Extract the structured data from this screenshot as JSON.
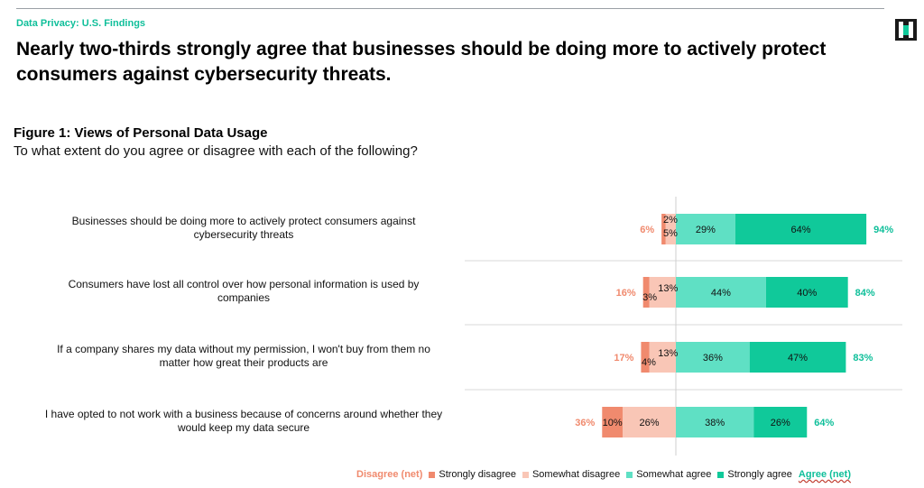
{
  "header": {
    "kicker": "Data Privacy: U.S. Findings",
    "title": "Nearly two-thirds strongly agree that businesses should be doing more to actively protect consumers against cybersecurity threats."
  },
  "figure": {
    "title": "Figure 1: Views of Personal Data Usage",
    "subtitle": "To what extent do you agree or disagree with each of the following?"
  },
  "colors": {
    "teal_text": "#0fbf9a",
    "salmon_text": "#f08a6e",
    "strongly_disagree": "#f08a6e",
    "somewhat_disagree": "#f9c6b6",
    "somewhat_agree": "#5fe0c4",
    "strongly_agree": "#10c99a",
    "logo_dark": "#1a1a1a",
    "logo_accent": "#10c99a"
  },
  "legend": {
    "disagree_net": "Disagree (net)",
    "strongly_disagree": "Strongly disagree",
    "somewhat_disagree": "Somewhat disagree",
    "somewhat_agree": "Somewhat agree",
    "strongly_agree": "Strongly agree",
    "agree_net": "Agree (net)"
  },
  "chart_data": {
    "type": "bar",
    "orientation": "horizontal-diverging",
    "categories": [
      [
        "Businesses should be doing more to actively protect consumers against",
        "cybersecurity threats"
      ],
      [
        "Consumers have lost all control over how personal information is used by",
        "companies"
      ],
      [
        "If a company shares my data without my permission, I won't buy from them no",
        "matter how great their products are"
      ],
      [
        "I have opted to not work with a business because of concerns around whether they",
        "would keep my data secure"
      ]
    ],
    "series": [
      {
        "name": "Strongly disagree",
        "values": [
          2,
          3,
          4,
          10
        ]
      },
      {
        "name": "Somewhat disagree",
        "values": [
          5,
          13,
          13,
          26
        ]
      },
      {
        "name": "Somewhat agree",
        "values": [
          29,
          44,
          36,
          38
        ]
      },
      {
        "name": "Strongly agree",
        "values": [
          64,
          40,
          47,
          26
        ]
      }
    ],
    "disagree_net": [
      6,
      16,
      17,
      36
    ],
    "agree_net": [
      94,
      84,
      83,
      64
    ],
    "unit": "%",
    "legend_position": "bottom"
  }
}
